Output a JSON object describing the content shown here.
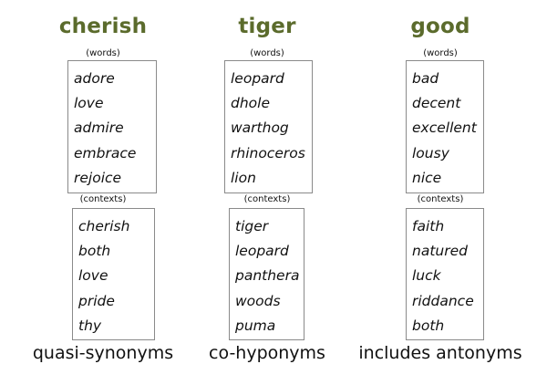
{
  "head_color": "#5b6b2c",
  "columns": [
    {
      "title": "cherish",
      "words_label": "(words)",
      "words": [
        "adore",
        "love",
        "admire",
        "embrace",
        "rejoice"
      ],
      "contexts_label": "(contexts)",
      "contexts": [
        "cherish",
        "both",
        "love",
        "pride",
        "thy"
      ],
      "caption": "quasi-synonyms"
    },
    {
      "title": "tiger",
      "words_label": "(words)",
      "words": [
        "leopard",
        "dhole",
        "warthog",
        "rhinoceros",
        "lion"
      ],
      "contexts_label": "(contexts)",
      "contexts": [
        "tiger",
        "leopard",
        "panthera",
        "woods",
        "puma"
      ],
      "caption": "co-hyponyms"
    },
    {
      "title": "good",
      "words_label": "(words)",
      "words": [
        "bad",
        "decent",
        "excellent",
        "lousy",
        "nice"
      ],
      "contexts_label": "(contexts)",
      "contexts": [
        "faith",
        "natured",
        "luck",
        "riddance",
        "both"
      ],
      "caption": "includes antonyms"
    }
  ]
}
